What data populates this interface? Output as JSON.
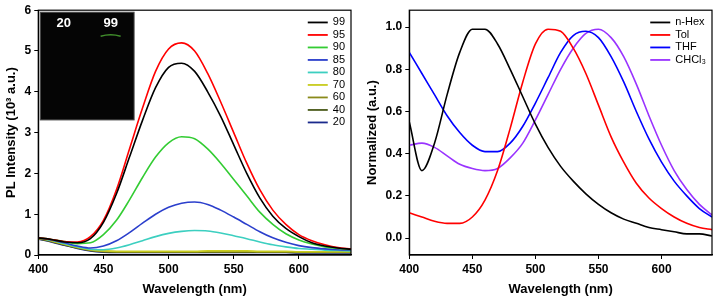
{
  "chart_data": [
    {
      "type": "line",
      "x_label": "Wavelength (nm)",
      "y_label": "PL Intensity (10³ a.u.)",
      "xlim": [
        400,
        640
      ],
      "xticks": [
        400,
        450,
        500,
        550,
        600
      ],
      "ylim": [
        0,
        6
      ],
      "yticks": [
        0,
        1,
        2,
        3,
        4,
        5,
        6
      ],
      "grid": false,
      "legend": "upper right",
      "annotations": [
        "20",
        "99"
      ],
      "x": [
        400,
        410,
        420,
        430,
        440,
        450,
        460,
        470,
        480,
        490,
        500,
        510,
        520,
        530,
        540,
        550,
        560,
        570,
        580,
        590,
        600,
        610,
        620,
        630,
        640
      ],
      "series": [
        {
          "name": "99",
          "color": "#000000",
          "values": [
            0.42,
            0.38,
            0.32,
            0.3,
            0.4,
            0.8,
            1.5,
            2.4,
            3.3,
            4.1,
            4.6,
            4.7,
            4.5,
            4.0,
            3.4,
            2.7,
            2.0,
            1.4,
            0.95,
            0.65,
            0.45,
            0.3,
            0.22,
            0.17,
            0.14
          ]
        },
        {
          "name": "95",
          "color": "#ff0000",
          "values": [
            0.42,
            0.38,
            0.33,
            0.32,
            0.45,
            0.85,
            1.6,
            2.6,
            3.6,
            4.5,
            5.05,
            5.2,
            5.0,
            4.45,
            3.75,
            3.0,
            2.25,
            1.6,
            1.1,
            0.75,
            0.5,
            0.35,
            0.25,
            0.18,
            0.15
          ]
        },
        {
          "name": "90",
          "color": "#33cc33",
          "values": [
            0.42,
            0.38,
            0.33,
            0.28,
            0.3,
            0.5,
            0.85,
            1.35,
            1.9,
            2.4,
            2.75,
            2.9,
            2.85,
            2.6,
            2.25,
            1.85,
            1.45,
            1.05,
            0.75,
            0.52,
            0.37,
            0.27,
            0.2,
            0.16,
            0.13
          ]
        },
        {
          "name": "85",
          "color": "#2b3fcc",
          "values": [
            0.42,
            0.37,
            0.3,
            0.22,
            0.17,
            0.22,
            0.35,
            0.55,
            0.78,
            1.0,
            1.17,
            1.27,
            1.3,
            1.24,
            1.1,
            0.93,
            0.75,
            0.57,
            0.42,
            0.31,
            0.23,
            0.18,
            0.15,
            0.13,
            0.12
          ]
        },
        {
          "name": "80",
          "color": "#3ccfc0",
          "values": [
            0.42,
            0.36,
            0.28,
            0.2,
            0.14,
            0.13,
            0.17,
            0.25,
            0.35,
            0.45,
            0.53,
            0.58,
            0.6,
            0.59,
            0.54,
            0.47,
            0.4,
            0.32,
            0.25,
            0.2,
            0.16,
            0.14,
            0.12,
            0.11,
            0.1
          ]
        },
        {
          "name": "70",
          "color": "#c8cc1e",
          "values": [
            0.42,
            0.35,
            0.27,
            0.19,
            0.13,
            0.1,
            0.09,
            0.09,
            0.09,
            0.09,
            0.09,
            0.09,
            0.09,
            0.1,
            0.1,
            0.1,
            0.1,
            0.09,
            0.09,
            0.09,
            0.08,
            0.08,
            0.08,
            0.08,
            0.08
          ]
        },
        {
          "name": "60",
          "color": "#8a8a1a",
          "values": [
            0.41,
            0.34,
            0.26,
            0.18,
            0.12,
            0.09,
            0.08,
            0.08,
            0.08,
            0.08,
            0.08,
            0.08,
            0.08,
            0.08,
            0.08,
            0.08,
            0.08,
            0.08,
            0.08,
            0.08,
            0.07,
            0.07,
            0.07,
            0.07,
            0.07
          ]
        },
        {
          "name": "40",
          "color": "#4a5a1a",
          "values": [
            0.4,
            0.33,
            0.25,
            0.17,
            0.11,
            0.08,
            0.07,
            0.07,
            0.07,
            0.07,
            0.07,
            0.07,
            0.07,
            0.07,
            0.07,
            0.07,
            0.07,
            0.07,
            0.07,
            0.07,
            0.06,
            0.06,
            0.06,
            0.06,
            0.06
          ]
        },
        {
          "name": "20",
          "color": "#1a2a8c",
          "values": [
            0.39,
            0.32,
            0.24,
            0.16,
            0.1,
            0.07,
            0.06,
            0.06,
            0.06,
            0.06,
            0.06,
            0.06,
            0.06,
            0.06,
            0.06,
            0.06,
            0.06,
            0.06,
            0.06,
            0.06,
            0.05,
            0.05,
            0.05,
            0.05,
            0.05
          ]
        }
      ]
    },
    {
      "type": "line",
      "x_label": "Wavelength (nm)",
      "y_label": "Normalized (a.u.)",
      "xlim": [
        400,
        640
      ],
      "xticks": [
        400,
        450,
        500,
        550,
        600
      ],
      "ylim": [
        -0.08,
        1.08
      ],
      "yticks": [
        {
          "value": 0,
          "label": "0.0"
        },
        0.2,
        0.4,
        0.6,
        0.8,
        {
          "value": 1,
          "label": "1.0"
        }
      ],
      "grid": false,
      "legend": "upper right",
      "x": [
        400,
        410,
        420,
        430,
        440,
        450,
        460,
        470,
        480,
        490,
        500,
        510,
        520,
        530,
        540,
        550,
        560,
        570,
        580,
        590,
        600,
        610,
        620,
        630,
        640
      ],
      "series": [
        {
          "name": "n-Hex",
          "color": "#000000",
          "values": [
            0.55,
            0.32,
            0.45,
            0.68,
            0.88,
            0.99,
            0.99,
            0.92,
            0.8,
            0.67,
            0.54,
            0.43,
            0.34,
            0.27,
            0.21,
            0.16,
            0.12,
            0.09,
            0.07,
            0.05,
            0.04,
            0.03,
            0.02,
            0.02,
            0.01
          ]
        },
        {
          "name": "Tol",
          "color": "#ff0000",
          "values": [
            0.12,
            0.1,
            0.08,
            0.07,
            0.07,
            0.1,
            0.18,
            0.32,
            0.52,
            0.74,
            0.92,
            0.99,
            0.98,
            0.9,
            0.78,
            0.63,
            0.48,
            0.36,
            0.26,
            0.19,
            0.14,
            0.1,
            0.07,
            0.05,
            0.04
          ]
        },
        {
          "name": "THF",
          "color": "#0000ff",
          "values": [
            0.88,
            0.78,
            0.68,
            0.58,
            0.5,
            0.44,
            0.41,
            0.41,
            0.45,
            0.53,
            0.64,
            0.76,
            0.88,
            0.96,
            0.98,
            0.95,
            0.86,
            0.74,
            0.6,
            0.47,
            0.36,
            0.27,
            0.2,
            0.14,
            0.1
          ]
        },
        {
          "name": "CHCl₃",
          "color": "#9933ff",
          "values": [
            0.44,
            0.45,
            0.43,
            0.39,
            0.35,
            0.33,
            0.32,
            0.33,
            0.38,
            0.45,
            0.56,
            0.68,
            0.8,
            0.9,
            0.97,
            0.99,
            0.95,
            0.86,
            0.73,
            0.58,
            0.44,
            0.32,
            0.23,
            0.16,
            0.11
          ]
        }
      ]
    }
  ]
}
